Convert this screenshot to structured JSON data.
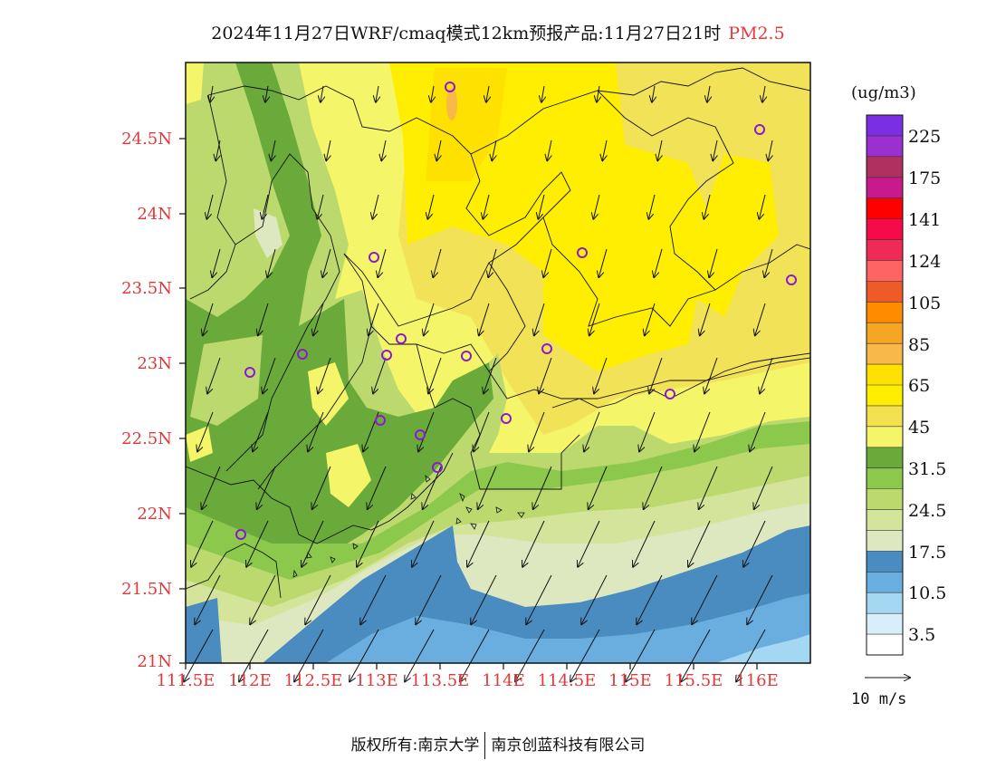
{
  "title": {
    "main": "2024年11月27日WRF/cmaq模式12km预报产品:11月27日21时",
    "pollutant": "PM2.5"
  },
  "axes": {
    "lat_labels": [
      "24.5N",
      "24N",
      "23.5N",
      "23N",
      "22.5N",
      "22N",
      "21.5N",
      "21N"
    ],
    "lon_labels": [
      "111.5E",
      "112E",
      "112.5E",
      "113E",
      "113.5E",
      "114E",
      "114.5E",
      "115E",
      "115.5E",
      "116E"
    ]
  },
  "colorbar": {
    "unit": "(ug/m3)",
    "labels": [
      "225",
      "175",
      "141",
      "124",
      "105",
      "85",
      "65",
      "45",
      "31.5",
      "24.5",
      "17.5",
      "10.5",
      "3.5"
    ],
    "colors_top_to_bottom": [
      "#7b2fe3",
      "#9b30d0",
      "#b03060",
      "#c81a8c",
      "#ff0000",
      "#f50a4a",
      "#f02a56",
      "#ff6464",
      "#ee5a28",
      "#ff8c00",
      "#f5a623",
      "#f8b84a",
      "#ffe100",
      "#ffee00",
      "#f2e04e",
      "#f5f56a",
      "#6aaa3a",
      "#8cc84b",
      "#bcd96e",
      "#d4e49a",
      "#dde8c0",
      "#4a8cc0",
      "#6aaee0",
      "#a4d8f2",
      "#d8eef9",
      "#ffffff"
    ]
  },
  "vector_legend": {
    "label": "10 m/s"
  },
  "footer": {
    "left": "版权所有:南京大学",
    "right": "南京创蓝科技有限公司"
  }
}
